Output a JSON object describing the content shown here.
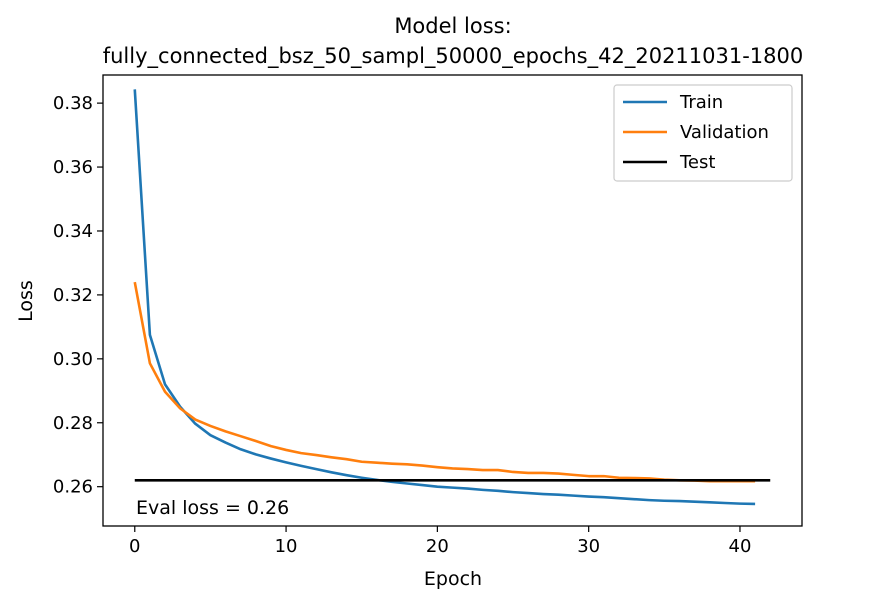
{
  "chart_data": {
    "type": "line",
    "title_line1": "Model loss:",
    "title_line2": "fully_connected_bsz_50_sampl_50000_epochs_42_20211031-1800",
    "xlabel": "Epoch",
    "ylabel": "Loss",
    "xlim": [
      -2.1,
      44.1
    ],
    "ylim": [
      0.2477,
      0.3888
    ],
    "xticks": [
      0,
      10,
      20,
      30,
      40
    ],
    "yticks": [
      0.26,
      0.28,
      0.3,
      0.32,
      0.34,
      0.36,
      0.38
    ],
    "ytick_labels": [
      "0.26",
      "0.28",
      "0.30",
      "0.32",
      "0.34",
      "0.36",
      "0.38"
    ],
    "grid": false,
    "legend_position": "top-right",
    "annotation": "Eval loss = 0.26",
    "series": [
      {
        "name": "Train",
        "color": "#1f77b4",
        "x": [
          0,
          1,
          2,
          3,
          4,
          5,
          6,
          7,
          8,
          9,
          10,
          11,
          12,
          13,
          14,
          15,
          16,
          17,
          18,
          19,
          20,
          21,
          22,
          23,
          24,
          25,
          26,
          27,
          28,
          29,
          30,
          31,
          32,
          33,
          34,
          35,
          36,
          37,
          38,
          39,
          40,
          41
        ],
        "values": [
          0.3843,
          0.3075,
          0.292,
          0.285,
          0.2797,
          0.2761,
          0.2738,
          0.2717,
          0.2701,
          0.2688,
          0.2676,
          0.2665,
          0.2655,
          0.2645,
          0.2636,
          0.2628,
          0.2621,
          0.2615,
          0.261,
          0.2605,
          0.26,
          0.2597,
          0.2594,
          0.259,
          0.2587,
          0.2583,
          0.258,
          0.2577,
          0.2575,
          0.2572,
          0.2569,
          0.2567,
          0.2564,
          0.2561,
          0.2558,
          0.2556,
          0.2555,
          0.2553,
          0.2551,
          0.2549,
          0.2547,
          0.2546
        ]
      },
      {
        "name": "Validation",
        "color": "#ff7f0e",
        "x": [
          0,
          1,
          2,
          3,
          4,
          5,
          6,
          7,
          8,
          9,
          10,
          11,
          12,
          13,
          14,
          15,
          16,
          17,
          18,
          19,
          20,
          21,
          22,
          23,
          24,
          25,
          26,
          27,
          28,
          29,
          30,
          31,
          32,
          33,
          34,
          35,
          36,
          37,
          38,
          39,
          40,
          41
        ],
        "values": [
          0.324,
          0.2986,
          0.2897,
          0.2845,
          0.281,
          0.279,
          0.2773,
          0.2758,
          0.2743,
          0.2727,
          0.2715,
          0.2705,
          0.2699,
          0.2692,
          0.2686,
          0.2678,
          0.2675,
          0.2672,
          0.267,
          0.2666,
          0.2661,
          0.2657,
          0.2655,
          0.2652,
          0.2652,
          0.2646,
          0.2643,
          0.2643,
          0.2641,
          0.2637,
          0.2633,
          0.2633,
          0.2628,
          0.2627,
          0.2626,
          0.2622,
          0.262,
          0.2619,
          0.2617,
          0.2617,
          0.2617,
          0.2617
        ]
      },
      {
        "name": "Test",
        "color": "#000000",
        "x": [
          0,
          42
        ],
        "values": [
          0.262,
          0.262
        ]
      }
    ]
  }
}
